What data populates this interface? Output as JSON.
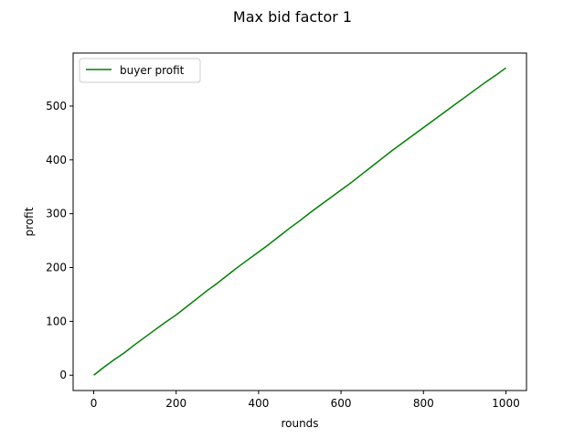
{
  "chart_data": {
    "type": "line",
    "title": "Max bid factor 1",
    "xlabel": "rounds",
    "ylabel": "profit",
    "xlim": [
      -50,
      1050
    ],
    "ylim": [
      -28.5,
      598.5
    ],
    "xticks": [
      0,
      200,
      400,
      600,
      800,
      1000
    ],
    "yticks": [
      0,
      100,
      200,
      300,
      400,
      500
    ],
    "grid": false,
    "legend": {
      "placement": "upper left"
    },
    "series": [
      {
        "name": "buyer profit",
        "color": "#008000",
        "x": [
          0,
          25,
          50,
          75,
          100,
          125,
          150,
          175,
          200,
          225,
          250,
          275,
          300,
          325,
          350,
          375,
          400,
          425,
          450,
          475,
          500,
          525,
          550,
          575,
          600,
          625,
          650,
          675,
          700,
          725,
          750,
          775,
          800,
          825,
          850,
          875,
          900,
          925,
          950,
          975,
          1000
        ],
        "y": [
          0,
          15,
          29,
          42,
          57,
          71,
          85,
          99,
          112,
          127,
          142,
          157,
          171,
          186,
          201,
          215,
          229,
          243,
          258,
          273,
          287,
          302,
          316,
          330,
          344,
          358,
          373,
          388,
          403,
          418,
          432,
          446,
          460,
          474,
          488,
          502,
          516,
          530,
          544,
          557,
          571
        ]
      }
    ]
  }
}
